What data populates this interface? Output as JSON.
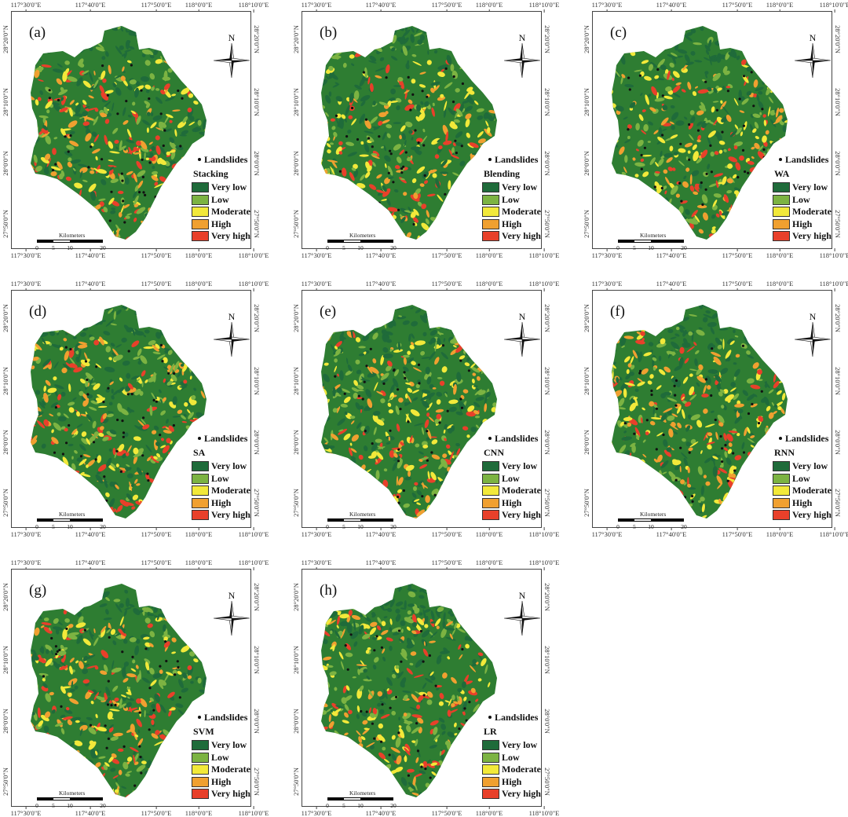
{
  "figure": {
    "axis_ticks": {
      "longitude": [
        "117°30'0\"E",
        "117°40'0\"E",
        "117°50'0\"E",
        "118°0'0\"E",
        "118°10'0\"E"
      ],
      "latitude": [
        "28°20'0\"N",
        "28°10'0\"N",
        "28°0'0\"N",
        "27°50'0\"N"
      ]
    },
    "north_arrow": "N",
    "landslides_label": "Landslides",
    "legend_classes": [
      {
        "label": "Very low",
        "color": "#1f6b3a"
      },
      {
        "label": "Low",
        "color": "#7cb342"
      },
      {
        "label": "Moderate",
        "color": "#f2e93a"
      },
      {
        "label": "High",
        "color": "#f0a030"
      },
      {
        "label": "Very high",
        "color": "#e8402a"
      }
    ],
    "scale_bar": {
      "title": "Kilometers",
      "ticks": [
        "0",
        "5",
        "10",
        "20"
      ]
    },
    "panels": [
      {
        "id": "(a)",
        "model": "Stacking"
      },
      {
        "id": "(b)",
        "model": "Blending"
      },
      {
        "id": "(c)",
        "model": "WA"
      },
      {
        "id": "(d)",
        "model": "SA"
      },
      {
        "id": "(e)",
        "model": "CNN"
      },
      {
        "id": "(f)",
        "model": "RNN"
      },
      {
        "id": "(g)",
        "model": "SVM"
      },
      {
        "id": "(h)",
        "model": "LR"
      }
    ]
  }
}
